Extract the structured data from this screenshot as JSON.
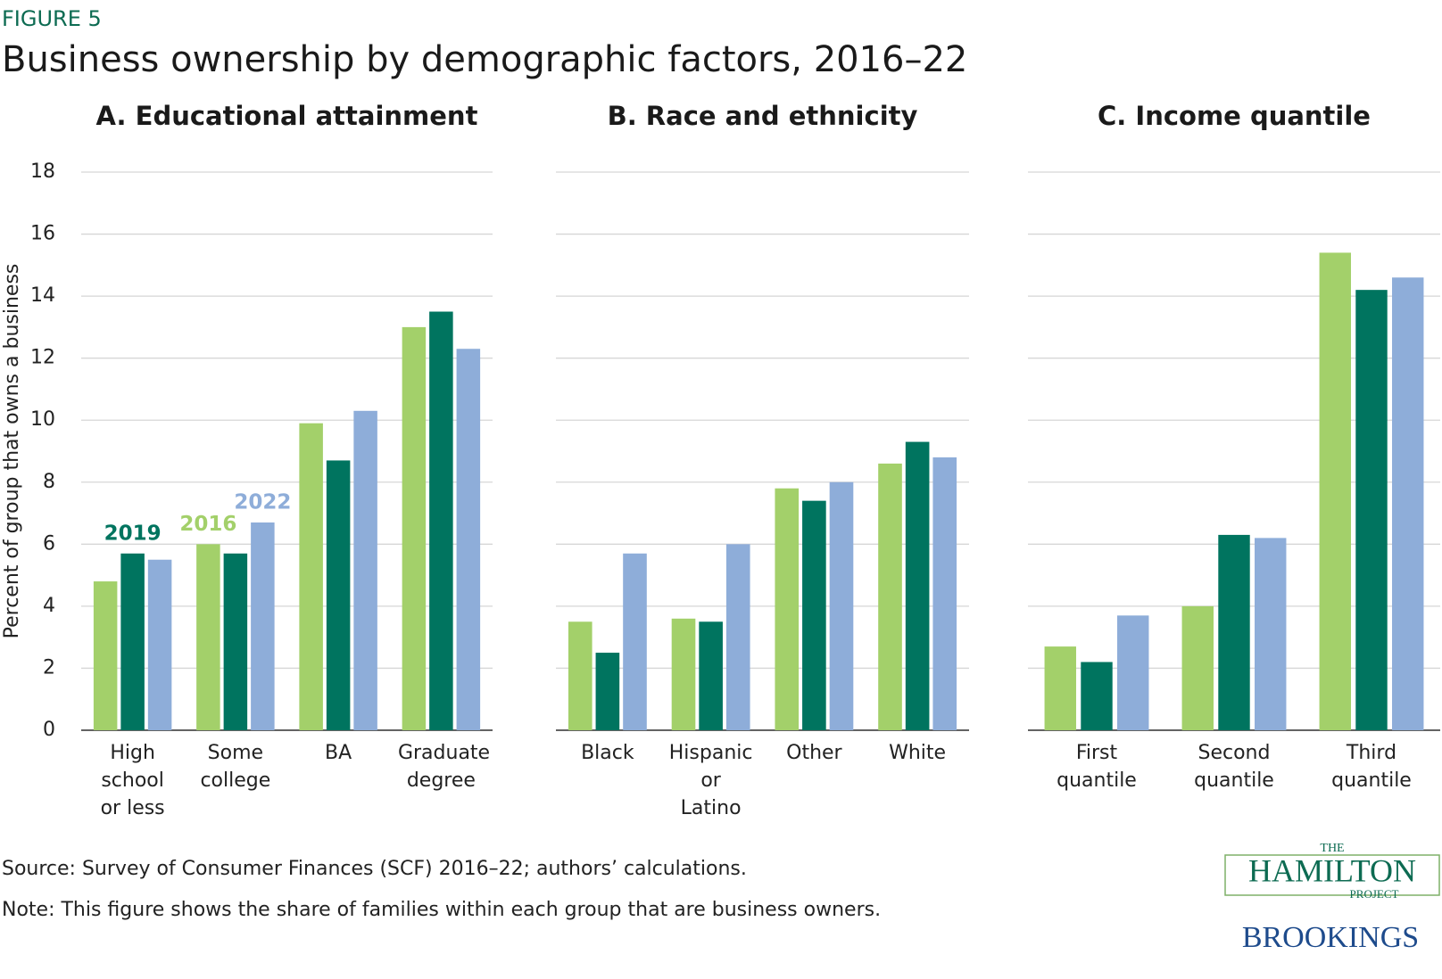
{
  "figure_label": "FIGURE 5",
  "title": "Business ownership by demographic factors, 2016–22",
  "chart_data": [
    {
      "type": "bar",
      "title": "A. Educational attainment",
      "y_label": "Percent  of group that owns a business",
      "categories": [
        "High school or less",
        "Some college",
        "BA",
        "Graduate degree"
      ],
      "series": [
        {
          "name": "2016",
          "color": "#a3d06a",
          "values": [
            4.8,
            6.0,
            9.9,
            13.0
          ]
        },
        {
          "name": "2019",
          "color": "#00745f",
          "values": [
            5.7,
            5.7,
            8.7,
            13.5
          ]
        },
        {
          "name": "2022",
          "color": "#8eadd9",
          "values": [
            5.5,
            6.7,
            10.3,
            12.3
          ]
        }
      ],
      "ylim": [
        0,
        18
      ],
      "yticks": [
        0,
        2,
        4,
        6,
        8,
        10,
        12,
        14,
        16,
        18
      ],
      "grid": true
    },
    {
      "type": "bar",
      "title": "B. Race and ethnicity",
      "categories": [
        "Black",
        "Hispanic or Latino",
        "Other",
        "White"
      ],
      "series": [
        {
          "color": "#a3d06a",
          "values": [
            3.5,
            3.6,
            7.8,
            8.6
          ]
        },
        {
          "color": "#00745f",
          "values": [
            2.5,
            3.5,
            7.4,
            9.3
          ]
        },
        {
          "color": "#8eadd9",
          "values": [
            5.7,
            6.0,
            8.0,
            8.8
          ]
        }
      ],
      "ylim": [
        0,
        18
      ],
      "yticks": [
        0,
        2,
        4,
        6,
        8,
        10,
        12,
        14,
        16,
        18
      ],
      "grid": true
    },
    {
      "type": "bar",
      "title": "C. Income quantile",
      "categories": [
        "First quantile",
        "Second quantile",
        "Third quantile"
      ],
      "series": [
        {
          "color": "#a3d06a",
          "values": [
            2.7,
            4.0,
            15.4
          ]
        },
        {
          "color": "#00745f",
          "values": [
            2.2,
            6.3,
            14.2
          ]
        },
        {
          "color": "#8eadd9",
          "values": [
            3.7,
            6.2,
            14.6
          ]
        }
      ],
      "ylim": [
        0,
        18
      ],
      "yticks": [
        0,
        2,
        4,
        6,
        8,
        10,
        12,
        14,
        16,
        18
      ],
      "grid": true
    }
  ],
  "source": "Source: Survey of Consumer Finances (SCF) 2016–22; authors’ calculations.",
  "note": "Note: This figure shows the share of families within each group that are business owners.",
  "logo": {
    "the": "THE",
    "hamilton": "HAMILTON",
    "project": "PROJECT",
    "brookings": "BROOKINGS"
  }
}
